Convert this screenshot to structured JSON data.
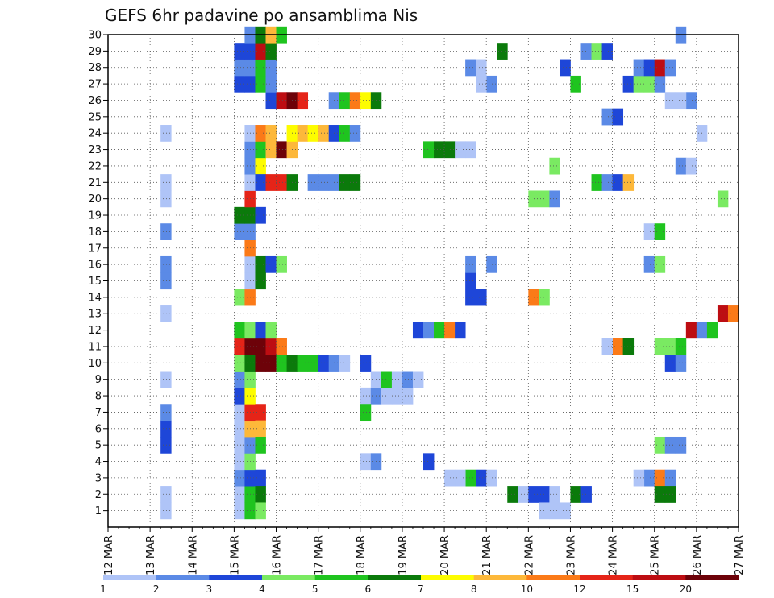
{
  "chart_data": {
    "type": "heatmap",
    "title": "GEFS 6hr padavine po ansamblima Nis",
    "x_tick_labels": [
      "12 MAR",
      "13 MAR",
      "14 MAR",
      "15 MAR",
      "16 MAR",
      "17 MAR",
      "18 MAR",
      "19 MAR",
      "20 MAR",
      "21 MAR",
      "22 MAR",
      "23 MAR",
      "24 MAR",
      "25 MAR",
      "26 MAR",
      "27 MAR"
    ],
    "y_tick_labels": [
      "1",
      "2",
      "3",
      "4",
      "5",
      "6",
      "7",
      "8",
      "9",
      "10",
      "11",
      "12",
      "13",
      "14",
      "15",
      "16",
      "17",
      "18",
      "19",
      "20",
      "21",
      "22",
      "23",
      "24",
      "25",
      "26",
      "27",
      "28",
      "29",
      "30"
    ],
    "x_range_days": [
      12,
      27
    ],
    "y_range": [
      0,
      30
    ],
    "grid": true,
    "legend": "bottom",
    "legend_levels": [
      "1",
      "2",
      "3",
      "4",
      "5",
      "6",
      "7",
      "8",
      "10",
      "12",
      "15",
      "20"
    ],
    "legend_colors": [
      "#afc4f7",
      "#5b8ae6",
      "#1e46d8",
      "#7aea62",
      "#1fc41f",
      "#0b7a0b",
      "#fdfc00",
      "#fdb83a",
      "#fb7a18",
      "#e52418",
      "#bd0d12",
      "#6d0209"
    ],
    "cells": [
      [
        15.0,
        1,
        1
      ],
      [
        15.0,
        2,
        1
      ],
      [
        15.0,
        3,
        2
      ],
      [
        15.0,
        4,
        1
      ],
      [
        15.0,
        5,
        1
      ],
      [
        15.25,
        1,
        5
      ],
      [
        15.25,
        2,
        5
      ],
      [
        15.25,
        3,
        3
      ],
      [
        15.25,
        4,
        4
      ],
      [
        15.25,
        5,
        2
      ],
      [
        15.0,
        6,
        1
      ],
      [
        15.0,
        7,
        1
      ],
      [
        15.0,
        8,
        3
      ],
      [
        15.0,
        9,
        2
      ],
      [
        15.0,
        10,
        4
      ],
      [
        15.25,
        6,
        8
      ],
      [
        15.25,
        7,
        12
      ],
      [
        15.25,
        8,
        7
      ],
      [
        15.25,
        9,
        4
      ],
      [
        15.25,
        10,
        6
      ],
      [
        15.0,
        11,
        12
      ],
      [
        15.0,
        12,
        5
      ],
      [
        15.25,
        11,
        20
      ],
      [
        15.25,
        12,
        4
      ],
      [
        15.5,
        10,
        20
      ],
      [
        15.5,
        11,
        20
      ],
      [
        15.5,
        12,
        3
      ],
      [
        15.5,
        7,
        12
      ],
      [
        15.5,
        6,
        8
      ],
      [
        15.5,
        5,
        5
      ],
      [
        15.5,
        3,
        3
      ],
      [
        15.5,
        2,
        6
      ],
      [
        15.5,
        1,
        4
      ],
      [
        15.75,
        11,
        15
      ],
      [
        15.75,
        10,
        20
      ],
      [
        15.75,
        12,
        4
      ],
      [
        16.0,
        11,
        10
      ],
      [
        16.0,
        10,
        5
      ],
      [
        16.25,
        10,
        6
      ],
      [
        16.5,
        10,
        5
      ],
      [
        16.75,
        10,
        5
      ],
      [
        17.0,
        10,
        3
      ],
      [
        17.25,
        10,
        2
      ],
      [
        17.5,
        10,
        1
      ],
      [
        18.0,
        10,
        3
      ],
      [
        15.0,
        14,
        4
      ],
      [
        15.25,
        14,
        10
      ],
      [
        15.25,
        15,
        1
      ],
      [
        15.25,
        16,
        1
      ],
      [
        15.25,
        17,
        10
      ],
      [
        15.5,
        16,
        6
      ],
      [
        15.75,
        16,
        3
      ],
      [
        16.0,
        16,
        4
      ],
      [
        15.5,
        15,
        6
      ],
      [
        15.0,
        18,
        2
      ],
      [
        15.25,
        18,
        2
      ],
      [
        15.0,
        19,
        6
      ],
      [
        15.25,
        19,
        6
      ],
      [
        15.5,
        19,
        3
      ],
      [
        15.25,
        20,
        12
      ],
      [
        15.25,
        21,
        1
      ],
      [
        15.25,
        22,
        2
      ],
      [
        15.5,
        22,
        7
      ],
      [
        15.5,
        21,
        3
      ],
      [
        15.75,
        21,
        12
      ],
      [
        16.0,
        21,
        12
      ],
      [
        16.25,
        21,
        6
      ],
      [
        16.75,
        21,
        2
      ],
      [
        17.0,
        21,
        2
      ],
      [
        17.25,
        21,
        2
      ],
      [
        17.5,
        21,
        6
      ],
      [
        17.75,
        21,
        6
      ],
      [
        15.25,
        23,
        2
      ],
      [
        15.5,
        23,
        5
      ],
      [
        15.75,
        23,
        8
      ],
      [
        16.0,
        23,
        20
      ],
      [
        16.25,
        23,
        8
      ],
      [
        15.25,
        24,
        1
      ],
      [
        15.5,
        24,
        10
      ],
      [
        15.75,
        24,
        8
      ],
      [
        16.25,
        24,
        7
      ],
      [
        16.5,
        24,
        8
      ],
      [
        16.75,
        24,
        7
      ],
      [
        17.0,
        24,
        8
      ],
      [
        17.25,
        24,
        3
      ],
      [
        17.5,
        24,
        5
      ],
      [
        17.75,
        24,
        2
      ],
      [
        15.75,
        26,
        3
      ],
      [
        16.0,
        26,
        15
      ],
      [
        16.25,
        26,
        20
      ],
      [
        16.5,
        26,
        12
      ],
      [
        17.25,
        26,
        2
      ],
      [
        17.5,
        26,
        5
      ],
      [
        17.75,
        26,
        10
      ],
      [
        18.0,
        26,
        7
      ],
      [
        18.25,
        26,
        6
      ],
      [
        15.0,
        27,
        3
      ],
      [
        15.25,
        27,
        3
      ],
      [
        15.5,
        27,
        5
      ],
      [
        15.75,
        27,
        2
      ],
      [
        15.0,
        28,
        2
      ],
      [
        15.25,
        28,
        2
      ],
      [
        15.5,
        28,
        5
      ],
      [
        15.75,
        28,
        2
      ],
      [
        15.0,
        29,
        3
      ],
      [
        15.25,
        29,
        3
      ],
      [
        15.5,
        29,
        15
      ],
      [
        15.75,
        29,
        6
      ],
      [
        15.25,
        30,
        2
      ],
      [
        15.5,
        30,
        6
      ],
      [
        15.75,
        30,
        8
      ],
      [
        16.0,
        30,
        5
      ],
      [
        13.25,
        5,
        3
      ],
      [
        13.25,
        6,
        3
      ],
      [
        13.25,
        7,
        2
      ],
      [
        13.25,
        9,
        1
      ],
      [
        13.25,
        13,
        1
      ],
      [
        13.25,
        15,
        2
      ],
      [
        13.25,
        16,
        2
      ],
      [
        13.25,
        18,
        2
      ],
      [
        13.25,
        20,
        1
      ],
      [
        13.25,
        21,
        1
      ],
      [
        13.25,
        24,
        1
      ],
      [
        13.25,
        1,
        1
      ],
      [
        13.25,
        2,
        1
      ],
      [
        18.0,
        8,
        1
      ],
      [
        18.25,
        8,
        2
      ],
      [
        18.5,
        8,
        1
      ],
      [
        18.75,
        8,
        1
      ],
      [
        19.0,
        8,
        1
      ],
      [
        18.25,
        9,
        1
      ],
      [
        18.5,
        9,
        5
      ],
      [
        18.75,
        9,
        1
      ],
      [
        19.0,
        9,
        2
      ],
      [
        19.25,
        9,
        1
      ],
      [
        18.0,
        7,
        5
      ],
      [
        18.0,
        4,
        1
      ],
      [
        18.25,
        4,
        2
      ],
      [
        19.5,
        4,
        3
      ],
      [
        19.25,
        12,
        3
      ],
      [
        19.5,
        12,
        2
      ],
      [
        19.75,
        12,
        5
      ],
      [
        20.0,
        12,
        10
      ],
      [
        20.25,
        12,
        3
      ],
      [
        19.5,
        23,
        5
      ],
      [
        19.75,
        23,
        6
      ],
      [
        20.0,
        23,
        6
      ],
      [
        20.25,
        23,
        1
      ],
      [
        20.5,
        23,
        1
      ],
      [
        20.5,
        3,
        5
      ],
      [
        20.75,
        3,
        3
      ],
      [
        21.0,
        3,
        1
      ],
      [
        20.0,
        3,
        1
      ],
      [
        20.25,
        3,
        1
      ],
      [
        20.5,
        14,
        3
      ],
      [
        20.75,
        14,
        3
      ],
      [
        20.5,
        15,
        3
      ],
      [
        20.5,
        16,
        2
      ],
      [
        21.0,
        16,
        2
      ],
      [
        21.25,
        29,
        6
      ],
      [
        21.0,
        27,
        2
      ],
      [
        20.75,
        27,
        1
      ],
      [
        20.5,
        28,
        2
      ],
      [
        20.75,
        28,
        1
      ],
      [
        21.75,
        2,
        1
      ],
      [
        22.0,
        2,
        3
      ],
      [
        22.25,
        2,
        3
      ],
      [
        22.5,
        2,
        1
      ],
      [
        23.0,
        2,
        6
      ],
      [
        22.25,
        1,
        1
      ],
      [
        22.5,
        1,
        1
      ],
      [
        22.75,
        1,
        1
      ],
      [
        23.25,
        2,
        3
      ],
      [
        21.5,
        2,
        6
      ],
      [
        22.0,
        14,
        10
      ],
      [
        22.25,
        14,
        4
      ],
      [
        22.0,
        20,
        4
      ],
      [
        22.25,
        20,
        4
      ],
      [
        22.5,
        20,
        2
      ],
      [
        22.5,
        22,
        4
      ],
      [
        23.0,
        27,
        5
      ],
      [
        22.75,
        28,
        3
      ],
      [
        23.25,
        29,
        2
      ],
      [
        23.5,
        29,
        4
      ],
      [
        23.75,
        29,
        3
      ],
      [
        23.5,
        21,
        5
      ],
      [
        23.75,
        21,
        2
      ],
      [
        24.0,
        21,
        3
      ],
      [
        24.25,
        21,
        8
      ],
      [
        23.75,
        25,
        2
      ],
      [
        24.0,
        25,
        3
      ],
      [
        24.0,
        11,
        10
      ],
      [
        24.25,
        11,
        6
      ],
      [
        23.75,
        11,
        1
      ],
      [
        24.25,
        27,
        3
      ],
      [
        24.5,
        27,
        4
      ],
      [
        24.75,
        27,
        4
      ],
      [
        25.0,
        27,
        2
      ],
      [
        24.5,
        28,
        2
      ],
      [
        24.75,
        28,
        3
      ],
      [
        25.0,
        28,
        15
      ],
      [
        25.25,
        28,
        2
      ],
      [
        24.75,
        3,
        2
      ],
      [
        25.0,
        3,
        10
      ],
      [
        25.25,
        3,
        2
      ],
      [
        24.5,
        3,
        1
      ],
      [
        25.0,
        2,
        6
      ],
      [
        25.25,
        2,
        6
      ],
      [
        25.0,
        5,
        4
      ],
      [
        25.25,
        5,
        2
      ],
      [
        25.5,
        5,
        2
      ],
      [
        25.0,
        11,
        4
      ],
      [
        25.25,
        11,
        4
      ],
      [
        25.5,
        11,
        5
      ],
      [
        25.25,
        10,
        3
      ],
      [
        25.5,
        10,
        2
      ],
      [
        24.75,
        16,
        2
      ],
      [
        25.0,
        16,
        4
      ],
      [
        24.75,
        18,
        1
      ],
      [
        25.0,
        18,
        5
      ],
      [
        25.75,
        12,
        15
      ],
      [
        26.0,
        12,
        2
      ],
      [
        26.25,
        12,
        5
      ],
      [
        26.5,
        13,
        15
      ],
      [
        26.75,
        13,
        10
      ],
      [
        26.5,
        20,
        4
      ],
      [
        25.5,
        22,
        2
      ],
      [
        25.75,
        22,
        1
      ],
      [
        26.0,
        24,
        1
      ],
      [
        25.75,
        26,
        2
      ],
      [
        25.5,
        26,
        1
      ],
      [
        25.25,
        26,
        1
      ],
      [
        25.5,
        30,
        2
      ]
    ]
  }
}
